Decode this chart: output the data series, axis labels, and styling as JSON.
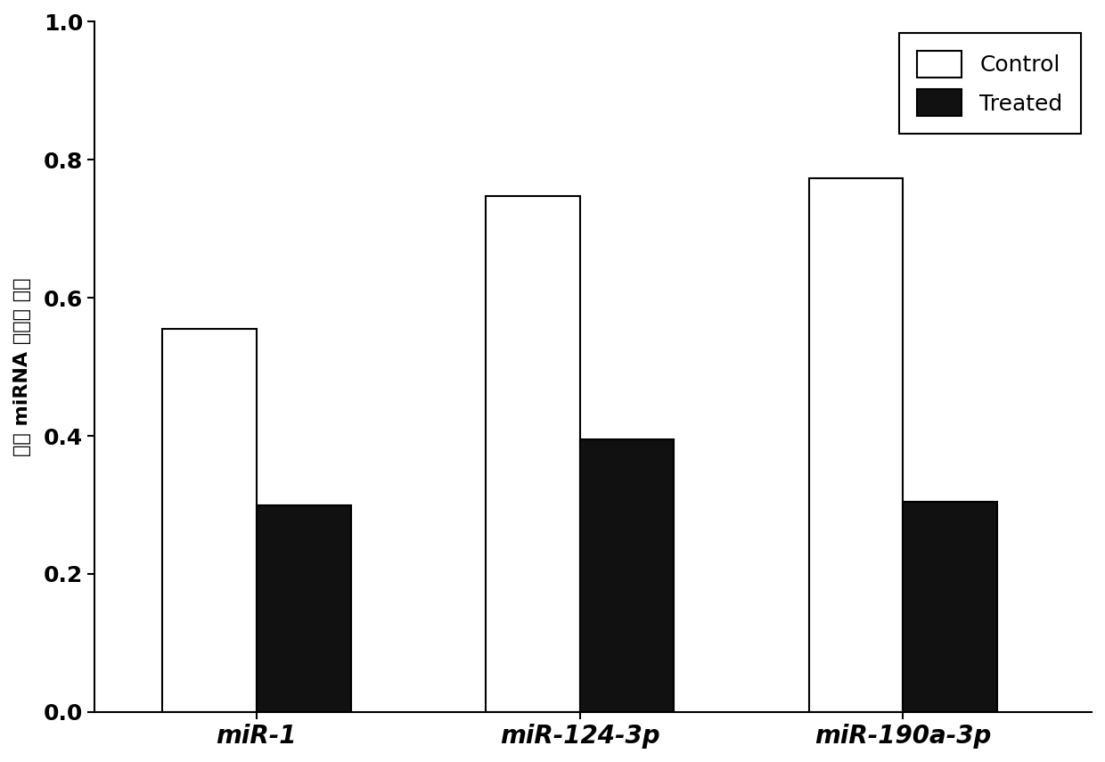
{
  "categories": [
    "miR-1",
    "miR-124-3p",
    "miR-190a-3p"
  ],
  "control_values": [
    0.555,
    0.748,
    0.773
  ],
  "treated_values": [
    0.3,
    0.395,
    0.305
  ],
  "bar_width": 0.35,
  "control_color": "#ffffff",
  "control_edgecolor": "#000000",
  "treated_color": "#111111",
  "treated_edgecolor": "#000000",
  "ylabel": "美丸 miRNA 表达中 位数",
  "ylim": [
    0.0,
    1.0
  ],
  "yticks": [
    0.0,
    0.2,
    0.4,
    0.6,
    0.8,
    1.0
  ],
  "legend_labels": [
    "Control",
    "Treated"
  ],
  "background_color": "#ffffff",
  "bar_linewidth": 1.5,
  "axis_linewidth": 1.5,
  "tick_fontsize": 18,
  "xlabel_fontsize": 20,
  "ylabel_fontsize": 16,
  "legend_fontsize": 18,
  "group_centers": [
    1.0,
    2.2,
    3.4
  ],
  "xlim": [
    0.4,
    4.1
  ]
}
